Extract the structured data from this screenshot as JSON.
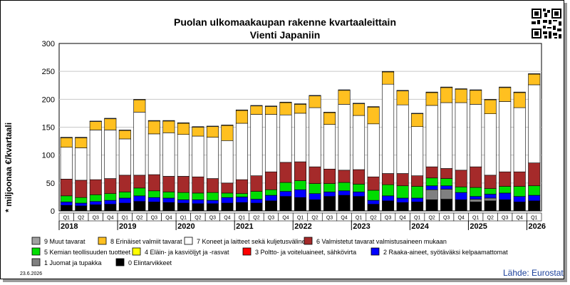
{
  "chart_data": {
    "type": "bar",
    "stacked": true,
    "title": "Puolan ulkomaakaupan rakenne kvartaaleittain",
    "subtitle": "Vienti Japaniin",
    "ylabel": "* miljoonaa €/kvartaali",
    "ylim": [
      0,
      300
    ],
    "yticks": [
      0,
      50,
      100,
      150,
      200,
      250,
      300
    ],
    "grid": true,
    "legend_position": "bottom",
    "quarter_labels": [
      "Q1",
      "Q2",
      "Q3",
      "Q4",
      "Q1",
      "Q2",
      "Q3",
      "Q4",
      "Q1",
      "Q2",
      "Q3",
      "Q4",
      "Q1",
      "Q2",
      "Q3",
      "Q4",
      "Q1",
      "Q2",
      "Q3",
      "Q4",
      "Q1",
      "Q2",
      "Q3",
      "Q4",
      "Q1",
      "Q2",
      "Q3",
      "Q4",
      "Q1",
      "Q2",
      "Q3",
      "Q4",
      "Q1"
    ],
    "years": [
      {
        "label": "2018",
        "start": 0
      },
      {
        "label": "2019",
        "start": 4
      },
      {
        "label": "2020",
        "start": 8
      },
      {
        "label": "2021",
        "start": 12
      },
      {
        "label": "2022",
        "start": 16
      },
      {
        "label": "2023",
        "start": 20
      },
      {
        "label": "2024",
        "start": 24
      },
      {
        "label": "2025",
        "start": 28
      },
      {
        "label": "2026",
        "start": 32
      }
    ],
    "series": [
      {
        "name": "0 Elintarvikkeet",
        "color": "#000000",
        "values": [
          10,
          9,
          11,
          12,
          14,
          17,
          16,
          15,
          14,
          13,
          13,
          14,
          15,
          14,
          18,
          26,
          24,
          20,
          26,
          28,
          26,
          12,
          18,
          15,
          16,
          20,
          21,
          20,
          16,
          18,
          20,
          16,
          18
        ]
      },
      {
        "name": "1 Juomat ja tupakka",
        "color": "#808080",
        "values": [
          0,
          0,
          0,
          0,
          0,
          0,
          0,
          0,
          0,
          0,
          0,
          0,
          0,
          0,
          0,
          0,
          0,
          0,
          0,
          0,
          0,
          0,
          0,
          0,
          0,
          18,
          18,
          0,
          5,
          5,
          0,
          0,
          0
        ]
      },
      {
        "name": "2 Raaka-aineet, syötäväksi kelpaamattomat",
        "color": "#0000ff",
        "values": [
          6,
          5,
          6,
          7,
          9,
          10,
          8,
          8,
          6,
          7,
          6,
          10,
          10,
          7,
          10,
          9,
          14,
          11,
          8,
          8,
          8,
          7,
          9,
          8,
          7,
          7,
          6,
          13,
          5,
          7,
          12,
          10,
          10
        ]
      },
      {
        "name": "3 Poltto- ja voiteluaineet, sähkövirta",
        "color": "#ff0000",
        "values": [
          0,
          0,
          0,
          0,
          0,
          0,
          0,
          0,
          0,
          0,
          0,
          0,
          0,
          0,
          0,
          0,
          0,
          0,
          0,
          0,
          0,
          0,
          0,
          0,
          0,
          0,
          0,
          0,
          0,
          0,
          0,
          0,
          0
        ]
      },
      {
        "name": "4 Eläin- ja kasviöljyt ja -rasvat",
        "color": "#ffff00",
        "values": [
          0,
          0,
          0,
          0,
          0,
          0,
          0,
          0,
          0,
          0,
          0,
          0,
          0,
          0,
          0,
          0,
          0,
          0,
          0,
          0,
          0,
          0,
          0,
          0,
          0,
          0,
          0,
          0,
          0,
          0,
          0,
          0,
          0
        ]
      },
      {
        "name": "5 Kemian teollisuuden tuotteet",
        "color": "#00dd00",
        "values": [
          11,
          10,
          12,
          12,
          11,
          14,
          12,
          11,
          13,
          12,
          14,
          8,
          6,
          14,
          10,
          16,
          16,
          18,
          15,
          15,
          14,
          18,
          20,
          22,
          21,
          14,
          13,
          10,
          16,
          10,
          12,
          18,
          17
        ]
      },
      {
        "name": "6 Valmistetut tavarat valmistusaineen mukaan",
        "color": "#a52a2a",
        "values": [
          30,
          31,
          27,
          27,
          30,
          23,
          29,
          28,
          29,
          29,
          25,
          18,
          25,
          28,
          32,
          36,
          34,
          30,
          26,
          22,
          26,
          24,
          20,
          22,
          19,
          20,
          18,
          30,
          37,
          24,
          26,
          26,
          41
        ]
      },
      {
        "name": "7 Koneet ja laitteet sekä kuljetusvälineet",
        "color": "#ffffff",
        "values": [
          57,
          58,
          89,
          87,
          65,
          113,
          73,
          78,
          75,
          73,
          74,
          76,
          101,
          110,
          103,
          85,
          87,
          106,
          80,
          118,
          97,
          95,
          160,
          123,
          88,
          110,
          118,
          121,
          112,
          110,
          126,
          115,
          140
        ]
      },
      {
        "name": "8 Erinäiset valmiit tavarat",
        "color": "#ffc020",
        "values": [
          17,
          18,
          15,
          20,
          15,
          22,
          23,
          21,
          20,
          16,
          19,
          27,
          23,
          15,
          14,
          22,
          16,
          21,
          21,
          25,
          21,
          30,
          22,
          25,
          23,
          23,
          27,
          24,
          25,
          25,
          25,
          27,
          19
        ]
      },
      {
        "name": "9 Muut tavarat",
        "color": "#a0a0a0",
        "values": [
          1,
          1,
          1,
          1,
          1,
          1,
          1,
          1,
          1,
          1,
          1,
          1,
          1,
          1,
          1,
          1,
          1,
          1,
          1,
          1,
          1,
          1,
          1,
          1,
          1,
          1,
          1,
          1,
          1,
          1,
          1,
          1,
          1
        ]
      }
    ],
    "legend_order": [
      9,
      8,
      7,
      6,
      5,
      4,
      3,
      2,
      1,
      0
    ]
  },
  "footer": {
    "date": "23.6.2026",
    "source": "Lähde: Eurostat"
  }
}
